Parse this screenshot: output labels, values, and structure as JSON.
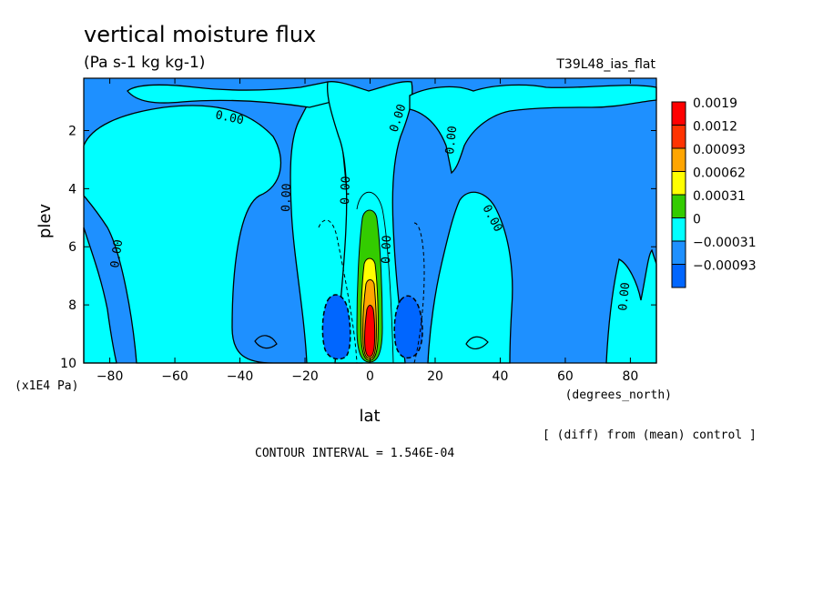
{
  "chart_data": {
    "type": "heatmap",
    "title": "vertical moisture flux",
    "subtitle": "(Pa s-1 kg kg-1)",
    "run_label": "T39L48_ias_flat",
    "xlabel": "lat",
    "x_units": "(degrees_north)",
    "ylabel": "plev",
    "y_units": "(x1E4 Pa)",
    "xlim": [
      -88,
      88
    ],
    "ylim": [
      0.2,
      10
    ],
    "y_inverted": true,
    "x_ticks": [
      "-80",
      "-60",
      "-40",
      "-20",
      "0",
      "20",
      "40",
      "60",
      "80"
    ],
    "x_tick_values": [
      -80,
      -60,
      -40,
      -20,
      0,
      20,
      40,
      60,
      80
    ],
    "y_ticks": [
      "2",
      "4",
      "6",
      "8",
      "10"
    ],
    "y_tick_values": [
      2,
      4,
      6,
      8,
      10
    ],
    "contour_interval_text": "CONTOUR INTERVAL = 1.546E-04",
    "diff_note": "[ (diff) from (mean) control ]",
    "contour_label": "0.00",
    "legend": {
      "labels": [
        "0.0019",
        "0.0012",
        "0.00093",
        "0.00062",
        "0.00031",
        "0",
        "−0.00031",
        "−0.00093"
      ],
      "colors": [
        "#ff0000",
        "#ff3300",
        "#ffa500",
        "#ffff00",
        "#33cc00",
        "#00ffff",
        "#1e90ff",
        "#0066ff"
      ]
    },
    "levels": [
      -0.00093,
      -0.00031,
      0,
      0.00031,
      0.00062,
      0.00093,
      0.0012,
      0.0019
    ],
    "grid": false
  },
  "colors": {
    "negative_fill": "#1e90ff",
    "zero_fill": "#00ffff",
    "green_fill": "#33cc00",
    "yellow_fill": "#ffff00",
    "orange_fill": "#ffa500",
    "red_fill": "#ff0000",
    "deep_negative_fill": "#0066ff"
  }
}
